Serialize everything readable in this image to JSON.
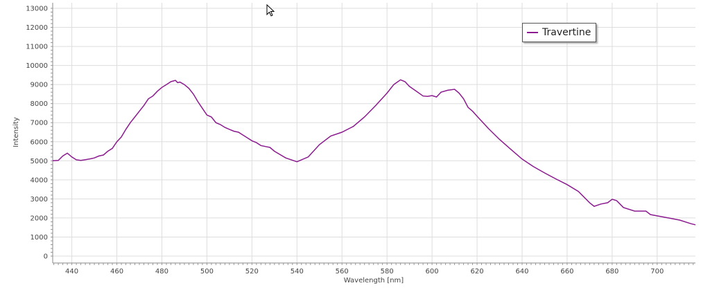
{
  "chart_data": {
    "type": "line",
    "title": "",
    "xlabel": "Wavelength [nm]",
    "ylabel": "Intensity",
    "xlim": [
      431.5,
      717
    ],
    "ylim": [
      0,
      13000
    ],
    "xticks": [
      440,
      460,
      480,
      500,
      520,
      540,
      560,
      580,
      600,
      620,
      640,
      660,
      680,
      700
    ],
    "yticks": [
      0,
      1000,
      2000,
      3000,
      4000,
      5000,
      6000,
      7000,
      8000,
      9000,
      10000,
      11000,
      12000,
      13000
    ],
    "grid": true,
    "legend_placement": "top-right",
    "series": [
      {
        "name": "Travertine",
        "color": "#8b1a8f",
        "x": [
          431.5,
          434,
          436,
          438,
          440,
          442,
          444,
          446,
          448,
          450,
          452,
          454,
          456,
          458,
          460,
          462,
          464,
          466,
          468,
          470,
          472,
          474,
          476,
          478,
          480,
          482,
          484,
          486,
          487,
          488,
          490,
          492,
          494,
          496,
          498,
          500,
          502,
          504,
          506,
          508,
          510,
          512,
          514,
          516,
          518,
          520,
          522,
          524,
          526,
          528,
          530,
          535,
          540,
          545,
          550,
          555,
          560,
          565,
          570,
          575,
          580,
          583,
          586,
          588,
          590,
          593,
          596,
          598,
          600,
          602,
          604,
          607,
          610,
          612,
          614,
          616,
          618,
          620,
          625,
          630,
          635,
          640,
          645,
          650,
          655,
          660,
          665,
          670,
          672,
          675,
          678,
          680,
          682,
          685,
          690,
          695,
          697,
          700,
          705,
          710,
          715,
          717
        ],
        "y": [
          5000,
          5020,
          5250,
          5400,
          5200,
          5050,
          5020,
          5060,
          5100,
          5150,
          5250,
          5300,
          5500,
          5650,
          6000,
          6250,
          6650,
          7000,
          7300,
          7600,
          7900,
          8250,
          8400,
          8650,
          8850,
          9000,
          9150,
          9220,
          9100,
          9130,
          9000,
          8800,
          8500,
          8100,
          7750,
          7400,
          7300,
          7000,
          6900,
          6750,
          6650,
          6550,
          6500,
          6350,
          6200,
          6050,
          5950,
          5800,
          5750,
          5700,
          5500,
          5150,
          4950,
          5200,
          5850,
          6300,
          6500,
          6800,
          7300,
          7900,
          8550,
          9000,
          9250,
          9150,
          8900,
          8650,
          8400,
          8380,
          8420,
          8350,
          8600,
          8700,
          8750,
          8550,
          8250,
          7800,
          7600,
          7340,
          6700,
          6120,
          5600,
          5090,
          4700,
          4360,
          4050,
          3750,
          3390,
          2800,
          2610,
          2730,
          2800,
          2980,
          2910,
          2550,
          2360,
          2360,
          2180,
          2110,
          2000,
          1890,
          1700,
          1640
        ]
      }
    ]
  },
  "icons": {
    "cursor": "mouse-pointer-icon"
  }
}
